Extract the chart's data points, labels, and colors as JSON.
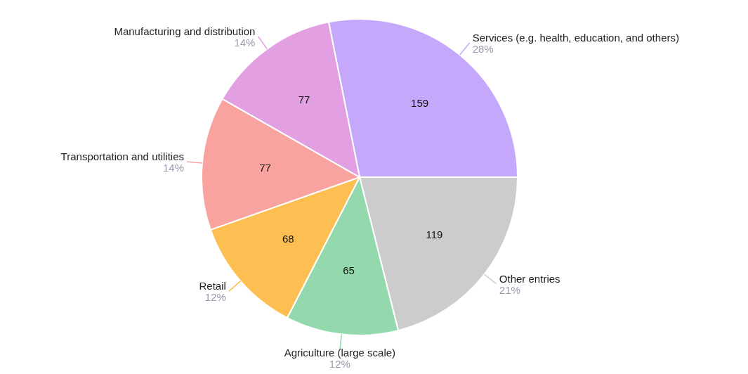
{
  "chart_data": {
    "type": "pie",
    "categories": [
      "Services (e.g. health, education, and others)",
      "Other entries",
      "Agriculture (large scale)",
      "Retail",
      "Transportation and utilities",
      "Manufacturing and distribution"
    ],
    "values": [
      159,
      119,
      65,
      68,
      77,
      77
    ],
    "colors": [
      "#c5a8fc",
      "#cccccc",
      "#94d9ae",
      "#fdbf52",
      "#f9a3a0",
      "#e2a0e2"
    ],
    "data_labels": true,
    "annotations": [
      "28%",
      "21%",
      "12%",
      "12%",
      "14%",
      "14%"
    ],
    "legend": false
  }
}
